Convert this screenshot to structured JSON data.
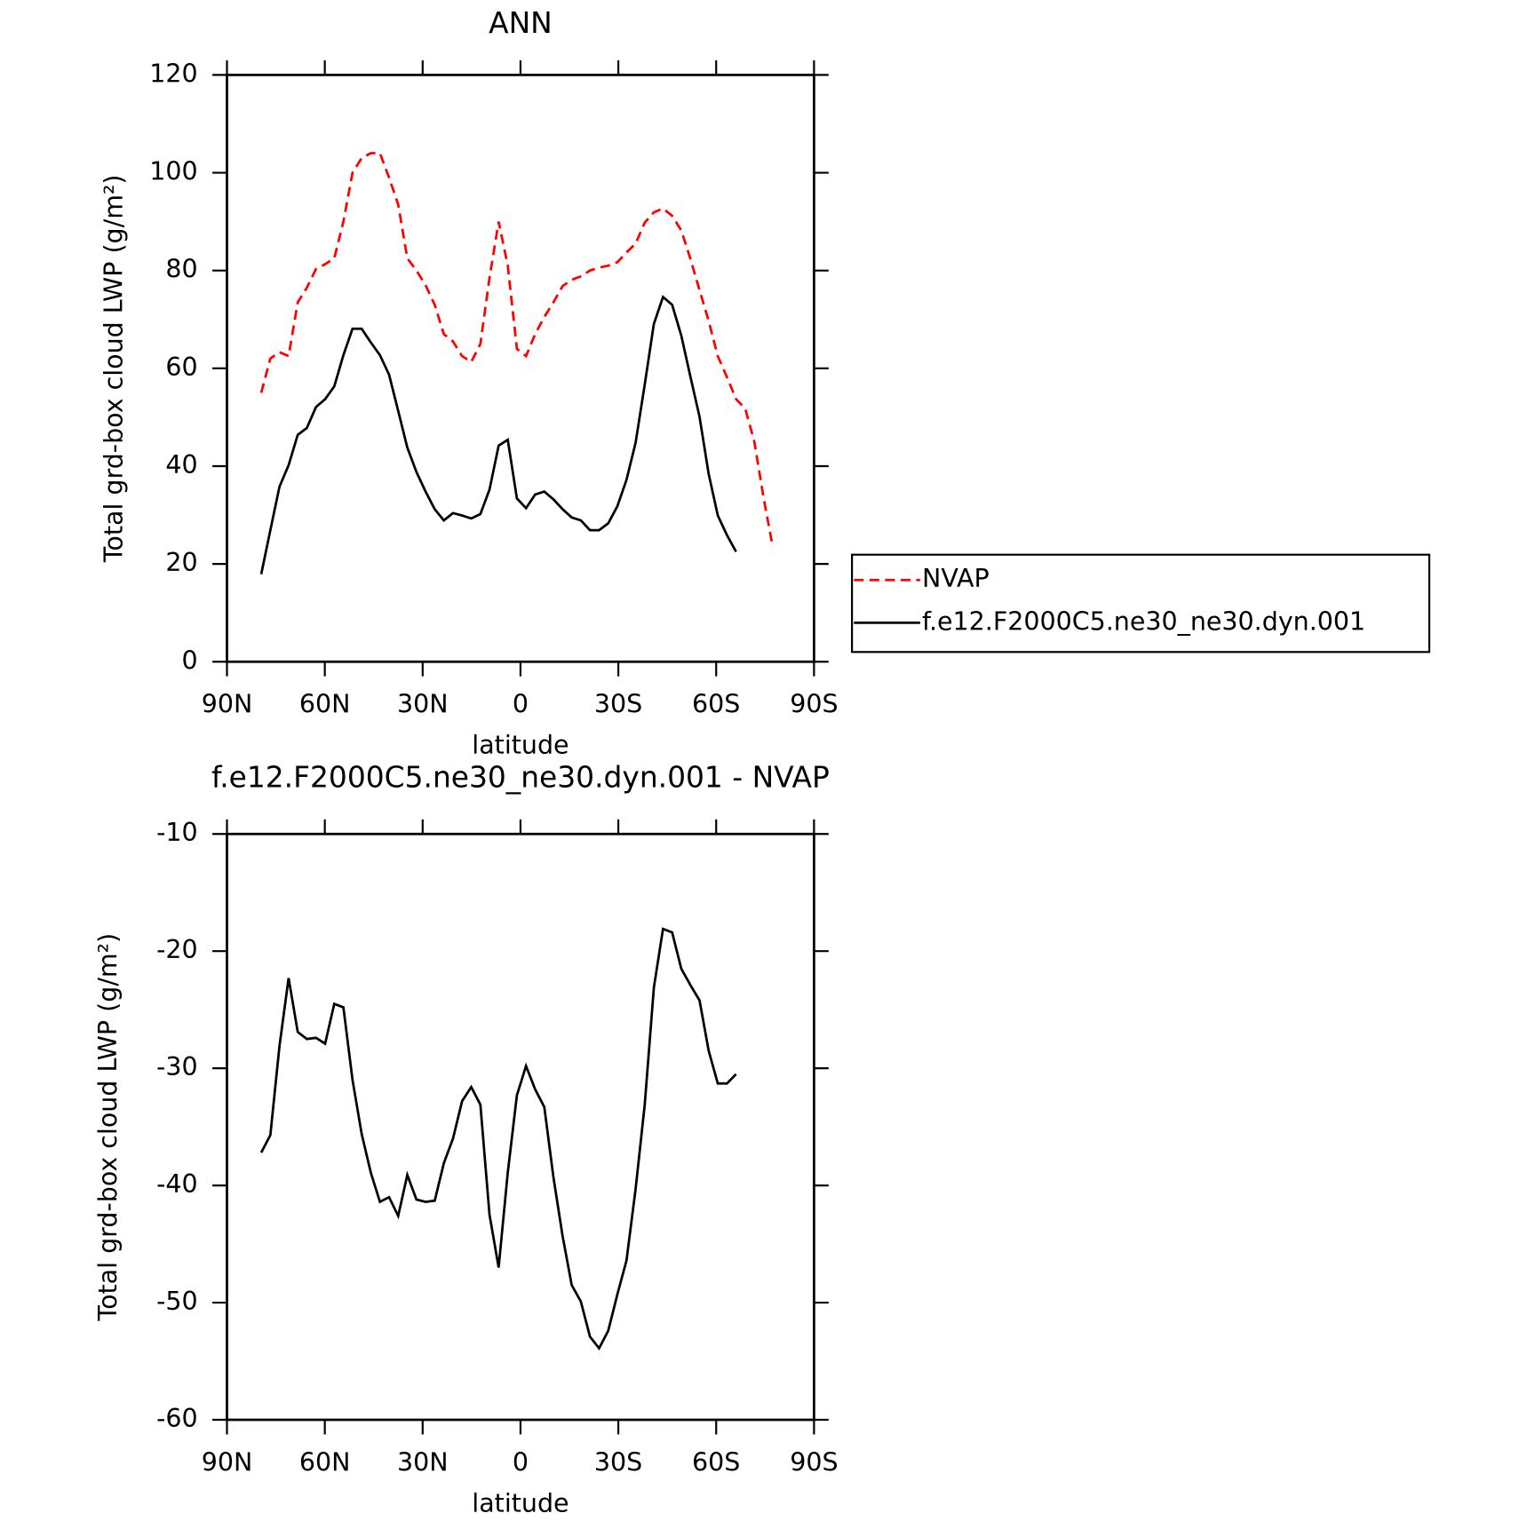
{
  "chart_data": [
    {
      "type": "line",
      "title": "ANN",
      "xlabel": "latitude",
      "ylabel": "Total grd-box cloud LWP (g/m²)",
      "x": [
        79.5,
        76.7,
        73.9,
        71.1,
        68.3,
        65.5,
        62.7,
        59.9,
        57.1,
        54.3,
        51.5,
        48.7,
        45.9,
        43.1,
        40.3,
        37.5,
        34.7,
        31.9,
        29.1,
        26.3,
        23.5,
        20.7,
        17.9,
        15.1,
        12.3,
        9.5,
        6.7,
        3.9,
        1.1,
        -1.7,
        -4.5,
        -7.3,
        -10.1,
        -12.9,
        -15.7,
        -18.5,
        -21.3,
        -24.1,
        -26.9,
        -29.7,
        -32.5,
        -35.3,
        -38.1,
        -40.9,
        -43.7,
        -46.5,
        -49.3,
        -52.1,
        -54.9,
        -57.7,
        -60.5,
        -63.3,
        -66.1,
        -68.9,
        -71.7,
        -74.5,
        -77.3
      ],
      "series": [
        {
          "name": "NVAP",
          "color": "#ff0000",
          "dash": "dashed",
          "values": [
            55,
            62,
            63.3,
            62.5,
            73.5,
            76.5,
            80.3,
            81.3,
            82.5,
            90,
            100,
            103,
            104,
            104,
            99,
            93.5,
            82.5,
            80,
            77,
            73,
            67,
            65.5,
            62.5,
            61.3,
            65,
            78.5,
            90,
            81,
            64,
            62.5,
            67,
            70.5,
            73.5,
            76.8,
            78.1,
            78.8,
            80,
            80.6,
            81,
            81.7,
            83.7,
            85.5,
            89.8,
            91.9,
            92.7,
            91.2,
            88.2,
            82.4,
            76,
            69.7,
            62.5,
            58.2,
            53.7,
            51.8,
            45,
            33.7,
            23.6
          ]
        },
        {
          "name": "f.e12.F2000C5.ne30_ne30.dyn.001",
          "color": "#000000",
          "dash": "solid",
          "values": [
            17.9,
            26.9,
            35.8,
            40.2,
            46.4,
            47.8,
            52.1,
            53.7,
            56.3,
            62.7,
            68.1,
            68.1,
            65.3,
            62.7,
            58.7,
            51.3,
            43.8,
            38.8,
            34.8,
            31.2,
            28.9,
            30.4,
            29.9,
            29.3,
            30.2,
            35.2,
            44.2,
            45.4,
            33.4,
            31.4,
            34.2,
            34.8,
            33.2,
            31.2,
            29.5,
            28.9,
            26.9,
            26.9,
            28.3,
            31.8,
            37.2,
            44.8,
            56.7,
            69.1,
            74.6,
            73,
            66.7,
            58.3,
            50.1,
            38.4,
            29.9,
            25.9,
            22.5,
            null,
            null,
            null,
            null
          ]
        }
      ],
      "xlim": [
        90,
        -90
      ],
      "xticks": [
        {
          "value": 90,
          "label": "90N"
        },
        {
          "value": 60,
          "label": "60N"
        },
        {
          "value": 30,
          "label": "30N"
        },
        0,
        {
          "value": -30,
          "label": "30S"
        },
        {
          "value": -60,
          "label": "60S"
        },
        {
          "value": -90,
          "label": "90S"
        }
      ],
      "ylim": [
        0,
        120
      ],
      "yticks": [
        0,
        20,
        40,
        60,
        80,
        100,
        120
      ],
      "legend": "right"
    },
    {
      "type": "line",
      "title": "f.e12.F2000C5.ne30_ne30.dyn.001 - NVAP",
      "xlabel": "latitude",
      "ylabel": "Total grd-box cloud LWP (g/m²)",
      "x": [
        79.5,
        76.7,
        73.9,
        71.1,
        68.3,
        65.5,
        62.7,
        59.9,
        57.1,
        54.3,
        51.5,
        48.7,
        45.9,
        43.1,
        40.3,
        37.5,
        34.7,
        31.9,
        29.1,
        26.3,
        23.5,
        20.7,
        17.9,
        15.1,
        12.3,
        9.5,
        6.7,
        3.9,
        1.1,
        -1.7,
        -4.5,
        -7.3,
        -10.1,
        -12.9,
        -15.7,
        -18.5,
        -21.3,
        -24.1,
        -26.9,
        -29.7,
        -32.5,
        -35.3,
        -38.1,
        -40.9,
        -43.7,
        -46.5,
        -49.3,
        -52.1,
        -54.9,
        -57.7,
        -60.5,
        -63.3,
        -66.1
      ],
      "series": [
        {
          "color": "#000000",
          "dash": "solid",
          "values": [
            -37.2,
            -35.7,
            -28.1,
            -22.3,
            -26.9,
            -27.5,
            -27.4,
            -27.9,
            -24.5,
            -24.8,
            -31.0,
            -35.6,
            -38.9,
            -41.4,
            -41.0,
            -42.6,
            -39.1,
            -41.2,
            -41.4,
            -41.3,
            -38.1,
            -36.0,
            -32.8,
            -31.6,
            -33.1,
            -42.5,
            -47.0,
            -38.9,
            -32.3,
            -29.8,
            -31.8,
            -33.3,
            -39.3,
            -44.3,
            -48.5,
            -49.9,
            -52.9,
            -53.9,
            -52.4,
            -49.3,
            -46.4,
            -40.3,
            -33.1,
            -23.1,
            -18.1,
            -18.4,
            -21.5,
            -22.9,
            -24.2,
            -28.5,
            -31.3,
            -31.3,
            -30.5
          ]
        }
      ],
      "xlim": [
        90,
        -90
      ],
      "xticks": [
        {
          "value": 90,
          "label": "90N"
        },
        {
          "value": 60,
          "label": "60N"
        },
        {
          "value": 30,
          "label": "30N"
        },
        0,
        {
          "value": -30,
          "label": "30S"
        },
        {
          "value": -60,
          "label": "60S"
        },
        {
          "value": -90,
          "label": "90S"
        }
      ],
      "ylim": [
        -60,
        -10
      ],
      "yticks": [
        -60,
        -50,
        -40,
        -30,
        -20,
        -10
      ]
    }
  ]
}
